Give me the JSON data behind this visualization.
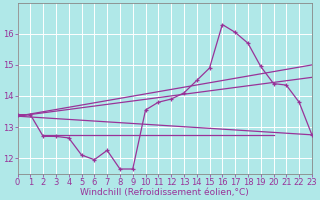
{
  "background_color": "#b0e8e8",
  "grid_color": "#ffffff",
  "line_color": "#993399",
  "x_min": 0,
  "x_max": 23,
  "y_min": 11.5,
  "y_max": 17.0,
  "yticks": [
    12,
    13,
    14,
    15,
    16
  ],
  "xlabel": "Windchill (Refroidissement éolien,°C)",
  "xlabel_fontsize": 6.5,
  "tick_fontsize": 6,
  "curve_x": [
    0,
    1,
    2,
    3,
    4,
    5,
    6,
    7,
    8,
    9,
    10,
    11,
    12,
    13,
    14,
    15,
    16,
    17,
    18,
    19,
    20,
    21,
    22,
    23
  ],
  "curve_y": [
    13.4,
    13.4,
    12.7,
    12.7,
    12.65,
    12.1,
    11.95,
    12.25,
    11.65,
    11.65,
    13.55,
    13.8,
    13.9,
    14.1,
    14.5,
    14.9,
    16.3,
    16.05,
    15.7,
    14.95,
    14.4,
    14.35,
    13.8,
    12.75
  ],
  "line1_x": [
    0,
    23
  ],
  "line1_y": [
    13.35,
    15.0
  ],
  "line2_x": [
    0,
    23
  ],
  "line2_y": [
    13.35,
    14.6
  ],
  "line3_x": [
    0,
    23
  ],
  "line3_y": [
    13.35,
    12.75
  ],
  "hline_x": [
    2,
    20
  ],
  "hline_y": [
    12.75,
    12.75
  ]
}
